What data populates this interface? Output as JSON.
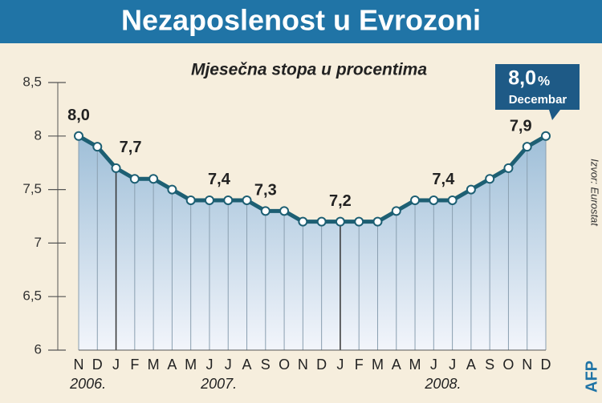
{
  "chart_data": {
    "type": "line",
    "title": "Nezaposlenost u Evrozoni",
    "subtitle": "Mjesečna stopa u procentima",
    "source": "Izvor: Eurostat",
    "logo": "AFP",
    "categories": [
      "N",
      "D",
      "J",
      "F",
      "M",
      "A",
      "M",
      "J",
      "J",
      "A",
      "S",
      "O",
      "N",
      "D",
      "J",
      "F",
      "M",
      "A",
      "M",
      "J",
      "J",
      "A",
      "S",
      "O",
      "N",
      "D"
    ],
    "year_labels": [
      "2006.",
      "2007.",
      "2008."
    ],
    "values": [
      8.0,
      7.9,
      7.7,
      7.6,
      7.6,
      7.5,
      7.4,
      7.4,
      7.4,
      7.4,
      7.3,
      7.3,
      7.2,
      7.2,
      7.2,
      7.2,
      7.2,
      7.3,
      7.4,
      7.4,
      7.4,
      7.5,
      7.6,
      7.7,
      7.9,
      8.0
    ],
    "value_labels": [
      "8,0",
      null,
      "7,7",
      null,
      null,
      null,
      null,
      "7,4",
      null,
      null,
      "7,3",
      null,
      null,
      null,
      "7,2",
      null,
      null,
      null,
      null,
      "7,4",
      null,
      null,
      null,
      null,
      "7,9",
      null
    ],
    "callout": {
      "value": "8,0",
      "unit": "%",
      "label": "Decembar"
    },
    "color": "#1d5f73",
    "ylim": [
      6,
      8.5
    ],
    "yticks": [
      {
        "value": 6,
        "label": "6"
      },
      {
        "value": 6.5,
        "label": "6,5"
      },
      {
        "value": 7,
        "label": "7"
      },
      {
        "value": 7.5,
        "label": "7,5"
      },
      {
        "value": 8,
        "label": "8"
      },
      {
        "value": 8.5,
        "label": "8,5"
      }
    ],
    "grid": true
  }
}
